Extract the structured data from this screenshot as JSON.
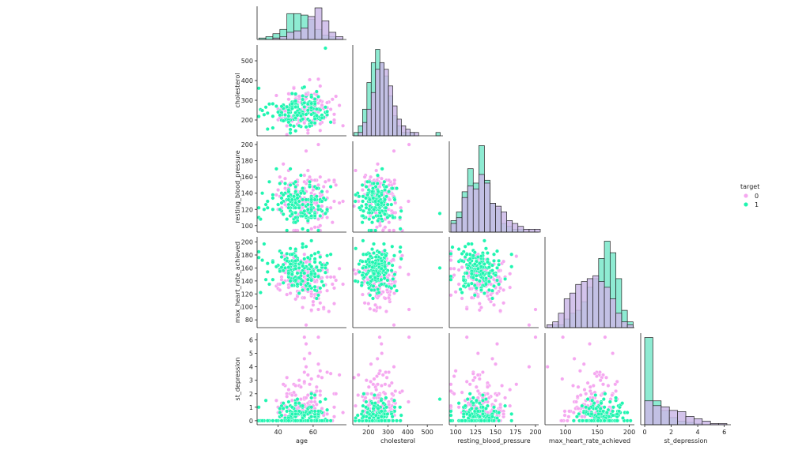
{
  "chart_data": {
    "type": "pairplot",
    "hue": "target",
    "variables": [
      "age",
      "cholesterol",
      "resting_blood_pressure",
      "max_heart_rate_achieved",
      "st_depression"
    ],
    "legend": {
      "title": "target",
      "placement": "right",
      "entries": [
        {
          "label": "0",
          "color": "#f5a8f0"
        },
        {
          "label": "1",
          "color": "#1ff5b0"
        }
      ]
    },
    "colors": {
      "class0": "#f5a8f0",
      "class1": "#1ff5b0",
      "class0_hist": "#cbb8e8",
      "class1_hist": "#8eebd2",
      "edge": "#222222"
    },
    "axes": {
      "age": {
        "range": [
          28,
          79
        ],
        "ticks": [
          40,
          60
        ],
        "label": "age"
      },
      "cholesterol": {
        "range": [
          120,
          580
        ],
        "ticks": [
          200,
          300,
          400,
          500
        ],
        "label": "cholesterol"
      },
      "resting_blood_pressure": {
        "range": [
          92,
          204
        ],
        "ticks": [
          100,
          120,
          140,
          160,
          180,
          200
        ],
        "xticks": [
          100,
          125,
          150,
          175,
          200
        ],
        "label": "resting_blood_pressure"
      },
      "max_heart_rate_achieved": {
        "range": [
          68,
          208
        ],
        "ticks": [
          80,
          100,
          120,
          140,
          160,
          180,
          200
        ],
        "xticks": [
          100,
          150,
          200
        ],
        "label": "max_heart_rate_achieved"
      },
      "st_depression": {
        "range": [
          -0.3,
          6.5
        ],
        "ticks": [
          0,
          1,
          2,
          3,
          4,
          5,
          6
        ],
        "xticks": [
          0,
          2,
          4,
          6
        ],
        "label": "st_depression"
      }
    },
    "tick_labels": {
      "age": [
        "40",
        "60"
      ],
      "cholesterol": [
        "200",
        "300",
        "400",
        "500"
      ],
      "resting_blood_pressure_x": [
        "100",
        "125",
        "150",
        "175",
        "200"
      ],
      "resting_blood_pressure_y": [
        "100",
        "120",
        "140",
        "160",
        "180",
        "200"
      ],
      "max_heart_rate_achieved_x": [
        "100",
        "150",
        "200"
      ],
      "max_heart_rate_achieved_y": [
        "80",
        "100",
        "120",
        "140",
        "160",
        "180",
        "200"
      ],
      "st_depression_x": [
        "0",
        "2",
        "4",
        "6"
      ],
      "st_depression_y": [
        "0",
        "1",
        "2",
        "3",
        "4",
        "5",
        "6"
      ]
    },
    "histograms": {
      "age": {
        "bin_edges": [
          29,
          33,
          37,
          41,
          45,
          49,
          53,
          57,
          61,
          65,
          69,
          73,
          77
        ],
        "class0": [
          0,
          0,
          1,
          2,
          5,
          6,
          8,
          16,
          22,
          13,
          5,
          2
        ],
        "class1": [
          1,
          2,
          4,
          7,
          18,
          18,
          17,
          14,
          7,
          3,
          2,
          0
        ]
      },
      "cholesterol": {
        "bin_edges": [
          126,
          148,
          170,
          192,
          214,
          236,
          258,
          280,
          302,
          324,
          346,
          368,
          390,
          412,
          434,
          456,
          478,
          500,
          522,
          544,
          566
        ],
        "class0": [
          0,
          1,
          4,
          8,
          13,
          20,
          22,
          20,
          15,
          9,
          5,
          3,
          2,
          1,
          1,
          0,
          0,
          0,
          0,
          0
        ],
        "class1": [
          1,
          3,
          8,
          16,
          22,
          26,
          22,
          18,
          12,
          6,
          3,
          1,
          1,
          1,
          0,
          0,
          0,
          0,
          0,
          1
        ]
      },
      "resting_blood_pressure": {
        "bin_edges": [
          94,
          101,
          108,
          115,
          122,
          129,
          136,
          143,
          150,
          157,
          164,
          171,
          178,
          185,
          192,
          199,
          206
        ],
        "class0": [
          3,
          5,
          12,
          16,
          15,
          20,
          17,
          10,
          9,
          7,
          4,
          3,
          2,
          1,
          1,
          1
        ],
        "class1": [
          4,
          7,
          14,
          22,
          17,
          30,
          18,
          10,
          8,
          3,
          2,
          1,
          1,
          0,
          0,
          0
        ]
      },
      "max_heart_rate_achieved": {
        "bin_edges": [
          71,
          80,
          89,
          98,
          107,
          116,
          125,
          134,
          143,
          152,
          161,
          170,
          179,
          188,
          197,
          206
        ],
        "class0": [
          1,
          2,
          5,
          10,
          12,
          15,
          16,
          17,
          18,
          16,
          14,
          10,
          5,
          2,
          1
        ],
        "class1": [
          0,
          1,
          1,
          3,
          5,
          6,
          9,
          14,
          17,
          24,
          30,
          26,
          17,
          6,
          2
        ]
      },
      "st_depression": {
        "bin_edges": [
          0,
          0.62,
          1.24,
          1.86,
          2.48,
          3.1,
          3.72,
          4.34,
          4.96,
          5.58,
          6.2
        ],
        "class0": [
          20,
          16,
          15,
          12,
          11,
          7,
          5,
          3,
          1,
          1
        ],
        "class1": [
          73,
          20,
          12,
          6,
          3,
          2,
          1,
          0,
          0,
          0
        ]
      }
    }
  }
}
